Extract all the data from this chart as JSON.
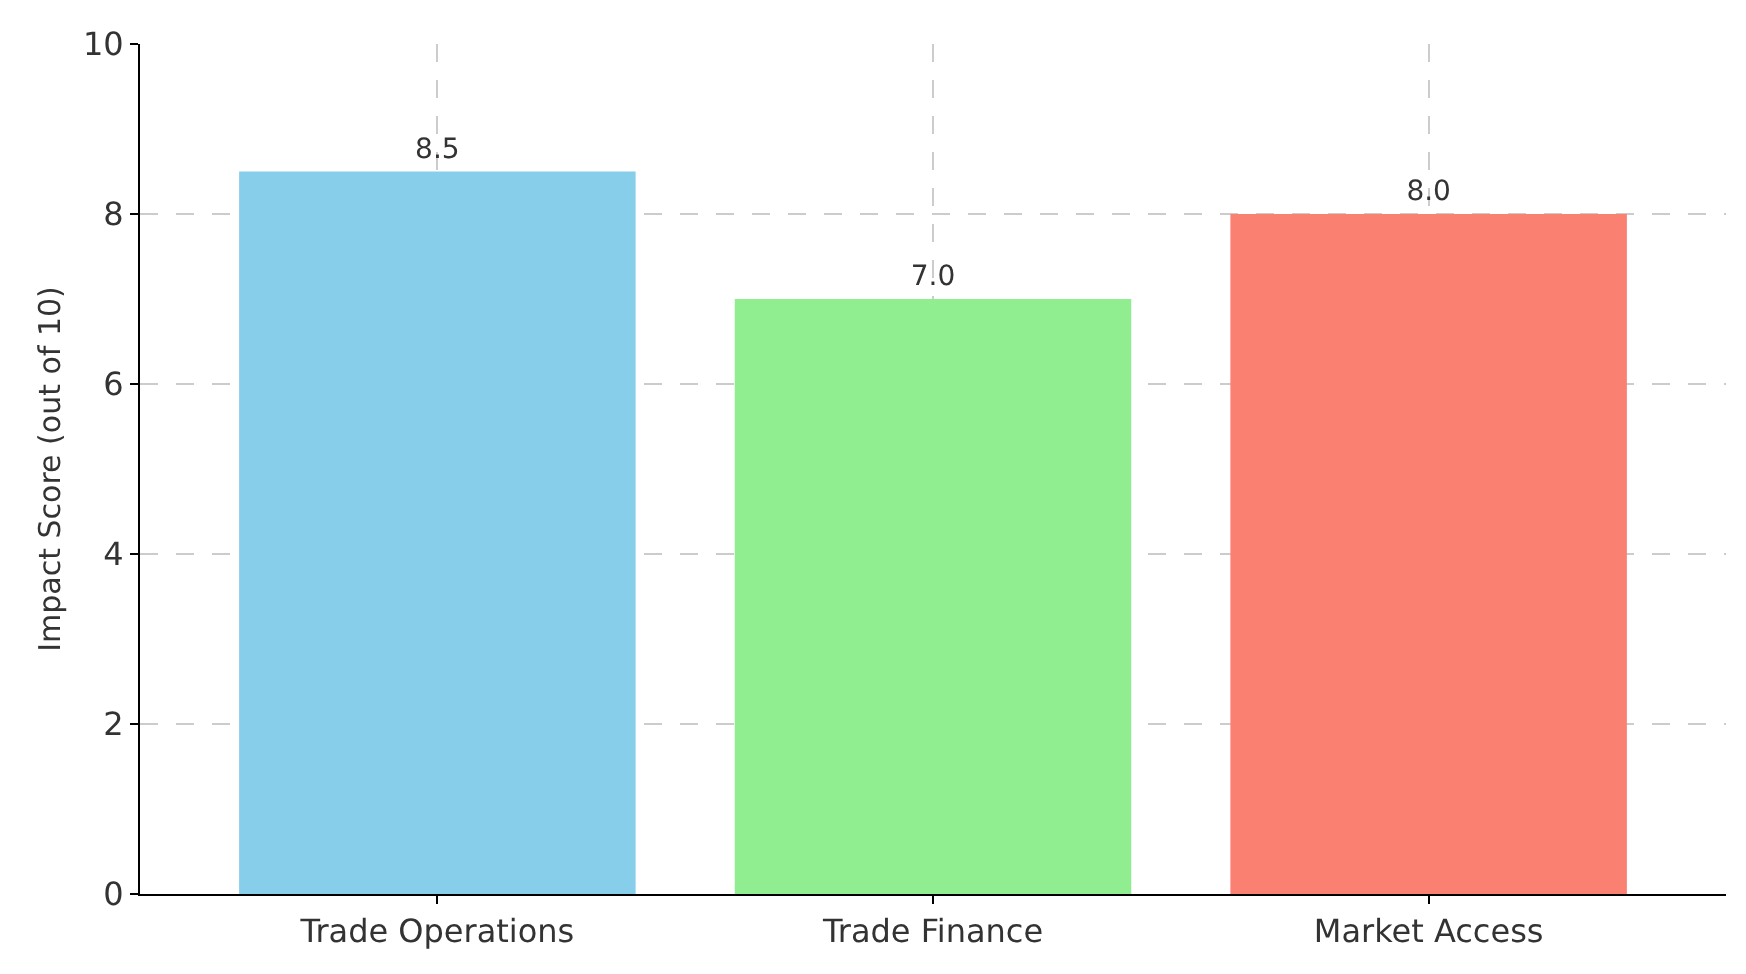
{
  "chart_data": {
    "type": "bar",
    "ylabel": "Impact Score (out of 10)",
    "categories": [
      "Trade Operations",
      "Trade Finance",
      "Market Access"
    ],
    "values": [
      8.5,
      7.0,
      8.0
    ],
    "colors": [
      "#87ceeb",
      "#90ee90",
      "#fa8072"
    ],
    "value_labels": [
      "8.5",
      "7.0",
      "8.0"
    ],
    "ylim": [
      0,
      10
    ],
    "yticks": [
      0,
      2,
      4,
      6,
      8,
      10
    ],
    "grid": true
  }
}
